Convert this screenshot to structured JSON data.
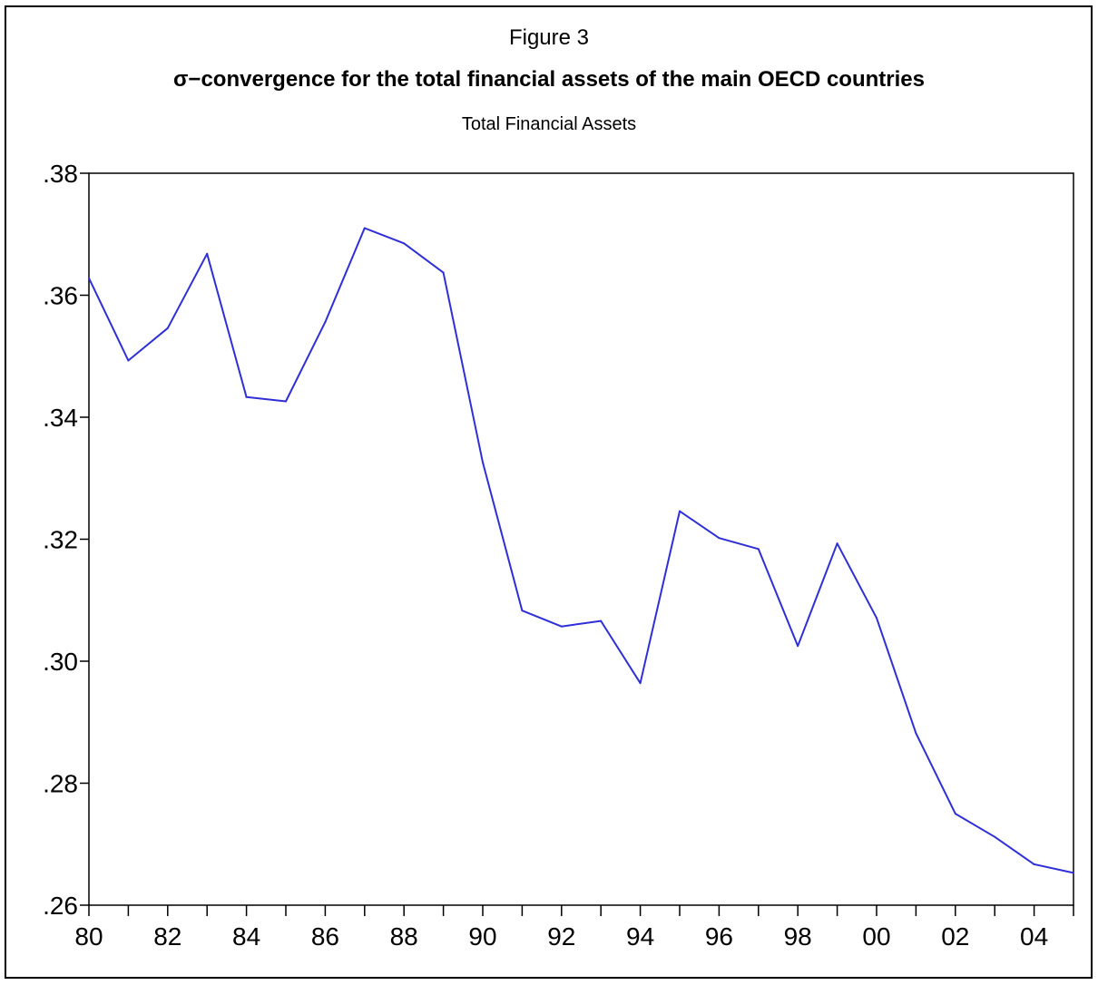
{
  "figure": {
    "label": "Figure 3",
    "title": "σ−convergence for the total financial assets of the main OECD countries"
  },
  "chart_data": {
    "type": "line",
    "title": "Total Financial Assets",
    "xlabel": "",
    "ylabel": "",
    "x": [
      1980,
      1981,
      1982,
      1983,
      1984,
      1985,
      1986,
      1987,
      1988,
      1989,
      1990,
      1991,
      1992,
      1993,
      1994,
      1995,
      1996,
      1997,
      1998,
      1999,
      2000,
      2001,
      2002,
      2003,
      2004,
      2005
    ],
    "series": [
      {
        "values": [
          0.3628,
          0.3493,
          0.3546,
          0.3668,
          0.3433,
          0.3426,
          0.3556,
          0.371,
          0.3685,
          0.3637,
          0.3326,
          0.3083,
          0.3057,
          0.3066,
          0.2964,
          0.3246,
          0.3202,
          0.3184,
          0.3025,
          0.3193,
          0.3071,
          0.2882,
          0.275,
          0.2712,
          0.2667,
          0.2653
        ]
      }
    ],
    "xlim": [
      1980,
      2005
    ],
    "ylim": [
      0.26,
      0.38
    ],
    "y_ticks": [
      0.26,
      0.28,
      0.3,
      0.32,
      0.34,
      0.36,
      0.38
    ],
    "y_tick_labels": [
      ".26",
      ".28",
      ".30",
      ".32",
      ".34",
      ".36",
      ".38"
    ],
    "x_ticks": [
      1980,
      1982,
      1984,
      1986,
      1988,
      1990,
      1992,
      1994,
      1996,
      1998,
      2000,
      2002,
      2004
    ],
    "x_tick_labels": [
      "80",
      "82",
      "84",
      "86",
      "88",
      "90",
      "92",
      "94",
      "96",
      "98",
      "00",
      "02",
      "04"
    ],
    "grid": false,
    "line_color": "#2f2fd8"
  }
}
